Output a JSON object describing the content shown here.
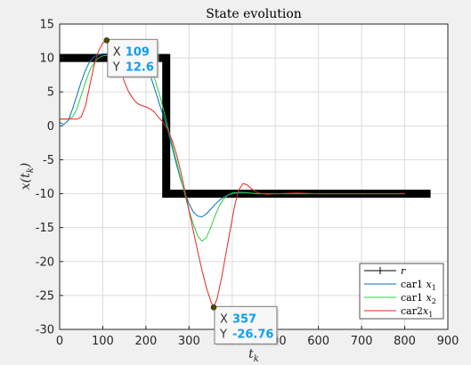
{
  "chart_data": {
    "type": "line",
    "title": "State evolution",
    "xlabel": "t_k",
    "ylabel": "x(t_k)",
    "xlim": [
      0,
      900
    ],
    "ylim": [
      -30,
      15
    ],
    "xticks": [
      "0",
      "100",
      "200",
      "300",
      "400",
      "500",
      "600",
      "700",
      "800",
      "900"
    ],
    "yticks": [
      "15",
      "10",
      "5",
      "0",
      "-5",
      "-10",
      "-15",
      "-20",
      "-25",
      "-30"
    ],
    "grid": true,
    "legend_position": "bottom-right",
    "series": [
      {
        "name": "r",
        "color": "#000000",
        "x": [
          0,
          247,
          247,
          860
        ],
        "y": [
          10,
          10,
          -10,
          -10
        ]
      },
      {
        "name": "car1 x_1",
        "color": "#0072bd",
        "x": [
          0,
          10,
          20,
          30,
          40,
          50,
          60,
          70,
          80,
          90,
          100,
          110,
          120,
          130,
          140,
          150,
          160,
          170,
          180,
          190,
          200,
          210,
          220,
          230,
          240,
          250,
          260,
          270,
          280,
          290,
          300,
          310,
          320,
          330,
          340,
          350,
          360,
          370,
          380,
          390,
          400,
          420,
          440,
          460,
          480,
          500,
          550,
          600,
          650,
          700,
          750,
          800
        ],
        "y": [
          0.5,
          0.2,
          0.8,
          2.5,
          4.5,
          6.5,
          8.2,
          9.5,
          10.2,
          10.5,
          10.6,
          10.6,
          10.5,
          10.4,
          10.3,
          10.2,
          10.0,
          9.8,
          9.6,
          9.3,
          8.8,
          7.5,
          5.5,
          3.5,
          1.5,
          -0.5,
          -3.0,
          -5.5,
          -7.8,
          -9.8,
          -11.5,
          -12.7,
          -13.3,
          -13.4,
          -13.0,
          -12.3,
          -11.6,
          -11.0,
          -10.5,
          -10.2,
          -10.0,
          -9.9,
          -9.9,
          -10.0,
          -10.0,
          -10.0,
          -10.0,
          -10.0,
          -10.0,
          -10.0,
          -10.0,
          -10.0
        ]
      },
      {
        "name": "car1 x_2",
        "color": "#2ecc40",
        "x": [
          0,
          10,
          20,
          30,
          40,
          50,
          60,
          70,
          80,
          90,
          100,
          110,
          120,
          130,
          140,
          150,
          160,
          170,
          180,
          190,
          200,
          210,
          220,
          230,
          240,
          250,
          260,
          270,
          280,
          290,
          300,
          310,
          320,
          330,
          340,
          350,
          360,
          370,
          380,
          390,
          400,
          420,
          440,
          460,
          480,
          500,
          550,
          600,
          650,
          700,
          750,
          800
        ],
        "y": [
          1.0,
          1.0,
          1.0,
          1.3,
          2.5,
          4.5,
          6.5,
          8.2,
          9.3,
          10.0,
          10.3,
          10.4,
          10.3,
          10.1,
          10.0,
          9.8,
          9.6,
          9.3,
          9.0,
          8.8,
          8.5,
          8.0,
          7.0,
          5.0,
          2.5,
          0.0,
          -2.5,
          -5.0,
          -7.5,
          -10.0,
          -12.5,
          -14.5,
          -16.2,
          -17.0,
          -16.5,
          -15.0,
          -13.3,
          -11.8,
          -10.8,
          -10.2,
          -9.9,
          -9.8,
          -9.9,
          -10.0,
          -10.0,
          -10.0,
          -10.0,
          -10.0,
          -10.0,
          -10.0,
          -10.0,
          -10.0
        ]
      },
      {
        "name": "car2x_1",
        "color": "#e6261f",
        "x": [
          0,
          10,
          20,
          30,
          40,
          50,
          60,
          70,
          80,
          90,
          100,
          109,
          120,
          130,
          140,
          150,
          160,
          170,
          180,
          190,
          200,
          210,
          220,
          230,
          240,
          250,
          260,
          270,
          280,
          290,
          300,
          310,
          320,
          330,
          340,
          350,
          357,
          365,
          375,
          385,
          395,
          405,
          415,
          425,
          435,
          445,
          460,
          480,
          500,
          550,
          600,
          650,
          700,
          750,
          800
        ],
        "y": [
          1.0,
          1.0,
          1.0,
          1.0,
          1.0,
          1.3,
          3.0,
          6.0,
          9.0,
          11.0,
          12.2,
          12.6,
          12.0,
          10.5,
          8.5,
          6.5,
          5.0,
          4.0,
          3.3,
          3.0,
          2.8,
          2.5,
          2.0,
          1.2,
          0.5,
          -0.5,
          -2.0,
          -4.0,
          -6.5,
          -9.5,
          -12.5,
          -15.5,
          -18.5,
          -21.3,
          -23.8,
          -25.8,
          -26.76,
          -25.5,
          -22.5,
          -19.0,
          -15.5,
          -12.0,
          -9.5,
          -8.5,
          -8.7,
          -9.3,
          -9.9,
          -10.1,
          -10.0,
          -9.9,
          -10.0,
          -10.0,
          -10.0,
          -10.0,
          -10.0
        ]
      }
    ],
    "datatips": [
      {
        "x_label": "X",
        "x_value": "109",
        "y_label": "Y",
        "y_value": "12.6",
        "x": 109,
        "y": 12.6
      },
      {
        "x_label": "X",
        "x_value": "357",
        "y_label": "Y",
        "y_value": "-26.76",
        "x": 357,
        "y": -26.76
      }
    ]
  }
}
